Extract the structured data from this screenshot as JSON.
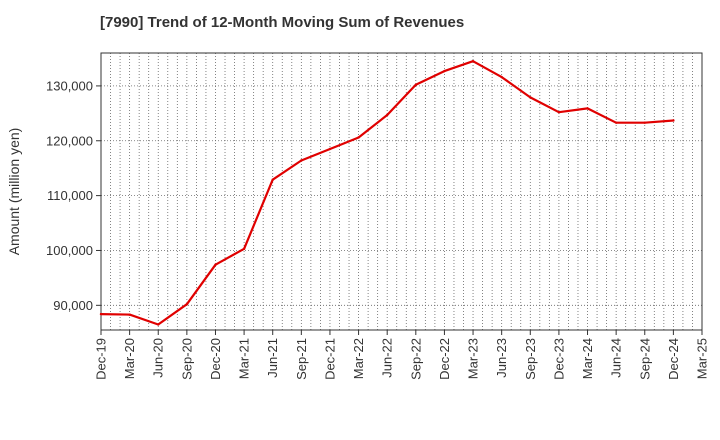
{
  "chart_data": {
    "type": "line",
    "title": "[7990]  Trend of 12-Month Moving Sum of Revenues",
    "xlabel": "",
    "ylabel": "Amount (million yen)",
    "categories": [
      "Dec-19",
      "Mar-20",
      "Jun-20",
      "Sep-20",
      "Dec-20",
      "Mar-21",
      "Jun-21",
      "Sep-21",
      "Dec-21",
      "Mar-22",
      "Jun-22",
      "Sep-22",
      "Dec-22",
      "Mar-23",
      "Jun-23",
      "Sep-23",
      "Dec-23",
      "Mar-24",
      "Jun-24",
      "Sep-24",
      "Dec-24",
      "Mar-25"
    ],
    "y_ticks": [
      90000,
      100000,
      110000,
      120000,
      130000
    ],
    "y_tick_labels": [
      "90,000",
      "100,000",
      "110,000",
      "120,000",
      "130,000"
    ],
    "ylim": [
      85500,
      136000
    ],
    "grid": true,
    "series": [
      {
        "color": "#e00000",
        "values": [
          88400,
          88300,
          86500,
          90200,
          97400,
          100300,
          112900,
          116400,
          118500,
          120600,
          124700,
          130200,
          132700,
          134500,
          131600,
          127900,
          125200,
          125900,
          123300,
          123300,
          123700,
          null
        ]
      }
    ]
  }
}
